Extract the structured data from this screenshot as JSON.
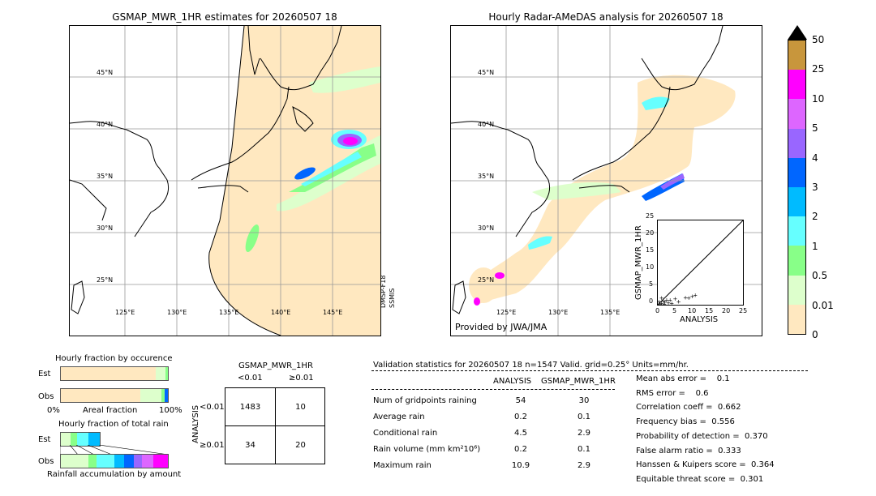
{
  "map_left": {
    "title": "GSMAP_MWR_1HR estimates for 20260507 18",
    "lat_labels": [
      "45°N",
      "40°N",
      "35°N",
      "30°N",
      "25°N"
    ],
    "lon_labels": [
      "125°E",
      "130°E",
      "135°E",
      "140°E",
      "145°E"
    ],
    "side_label_1": "DMSP-F18",
    "side_label_2": "SSMIS"
  },
  "map_right": {
    "title": "Hourly Radar-AMeDAS analysis for 20260507 18",
    "lat_labels": [
      "45°N",
      "40°N",
      "35°N",
      "30°N",
      "25°N"
    ],
    "lon_labels": [
      "125°E",
      "130°E",
      "135°E"
    ],
    "credit": "Provided by JWA/JMA"
  },
  "inset_scatter": {
    "xlabel": "ANALYSIS",
    "ylabel": "GSMAP_MWR_1HR",
    "ticks": [
      "0",
      "5",
      "10",
      "15",
      "20",
      "25"
    ]
  },
  "colorbar": {
    "labels": [
      "50",
      "25",
      "10",
      "5",
      "4",
      "3",
      "2",
      "1",
      "0.5",
      "0.01",
      "0"
    ],
    "colors": [
      "#c8963c",
      "#ff00ff",
      "#dd66ff",
      "#9966ff",
      "#0066ff",
      "#00bbff",
      "#66ffff",
      "#88ff88",
      "#ddffcc",
      "#ffe8c0"
    ]
  },
  "occurrence": {
    "title": "Hourly fraction by occurence",
    "rows": [
      "Est",
      "Obs"
    ],
    "axis_left": "0%",
    "axis_mid": "Areal fraction",
    "axis_right": "100%"
  },
  "total_rain": {
    "title": "Hourly fraction of total rain",
    "rows": [
      "Est",
      "Obs"
    ],
    "footer": "Rainfall accumulation by amount"
  },
  "contingency": {
    "title": "GSMAP_MWR_1HR",
    "col_headers": [
      "<0.01",
      "≥0.01"
    ],
    "row_axis_label": "ANALYSIS",
    "row_headers": [
      "<0.01",
      "≥0.01"
    ],
    "cells": [
      [
        "1483",
        "10"
      ],
      [
        "34",
        "20"
      ]
    ]
  },
  "validation": {
    "header": "Validation statistics for 20260507 18  n=1547 Valid. grid=0.25° Units=mm/hr.",
    "col1": "ANALYSIS",
    "col2": "GSMAP_MWR_1HR",
    "rows": [
      {
        "label": "Num of gridpoints raining",
        "a": "54",
        "b": "30"
      },
      {
        "label": "Average rain",
        "a": "0.2",
        "b": "0.1"
      },
      {
        "label": "Conditional rain",
        "a": "4.5",
        "b": "2.9"
      },
      {
        "label": "Rain volume (mm km²10⁶)",
        "a": "0.2",
        "b": "0.1"
      },
      {
        "label": "Maximum rain",
        "a": "10.9",
        "b": "2.9"
      }
    ],
    "scores": [
      "Mean abs error =    0.1",
      "RMS error =    0.6",
      "Correlation coeff =  0.662",
      "Frequency bias =  0.556",
      "Probability of detection =  0.370",
      "False alarm ratio =  0.333",
      "Hanssen & Kuipers score =  0.364",
      "Equitable threat score =  0.301"
    ]
  },
  "chart_data": {
    "type": "scatter",
    "title": "",
    "xlabel": "ANALYSIS",
    "ylabel": "GSMAP_MWR_1HR",
    "xlim": [
      0,
      25
    ],
    "ylim": [
      0,
      25
    ],
    "points": [
      [
        0.5,
        0.3
      ],
      [
        1,
        0.5
      ],
      [
        1.5,
        1.2
      ],
      [
        2,
        0.8
      ],
      [
        2.5,
        1.5
      ],
      [
        3,
        0.6
      ],
      [
        1,
        2
      ],
      [
        0.3,
        1
      ],
      [
        4,
        0.5
      ],
      [
        5,
        1.8
      ],
      [
        6,
        1
      ],
      [
        8,
        2.2
      ],
      [
        9,
        2
      ],
      [
        10,
        2.5
      ],
      [
        10.9,
        2.9
      ],
      [
        1.8,
        0.2
      ],
      [
        3.5,
        1.4
      ]
    ]
  }
}
